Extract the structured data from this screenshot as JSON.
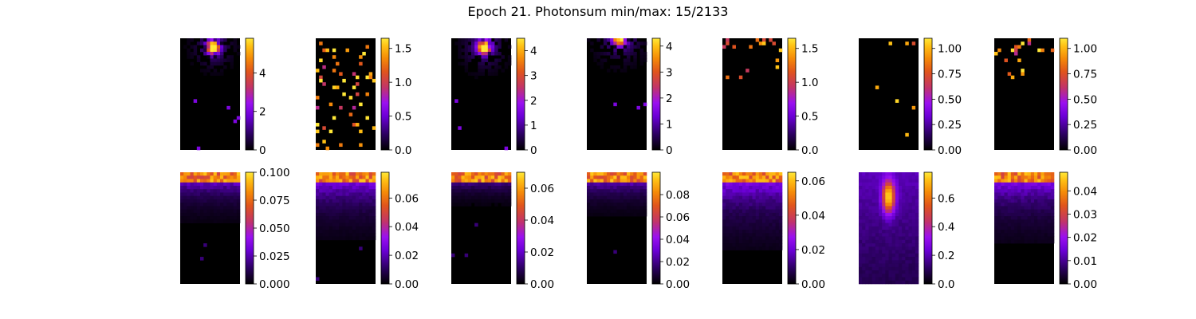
{
  "title": "Epoch 21. Photonsum min/max: 15/2133",
  "colormap": [
    "#000000",
    "#2b0060",
    "#6b00d6",
    "#9a10f0",
    "#c23468",
    "#e0541c",
    "#f58a08",
    "#ffc014",
    "#ffe838"
  ],
  "chart_data": {
    "type": "heatmap",
    "rows": 2,
    "columns": 7,
    "grid_size": [
      18,
      33
    ],
    "panels": [
      {
        "row": 0,
        "col": 0,
        "vmin": 0,
        "vmax": 5.8,
        "ticks": [
          "0",
          "2",
          "4"
        ],
        "tick_values": [
          0,
          2,
          4
        ],
        "pattern": "hotspot",
        "center": [
          0.55,
          0.08
        ],
        "spread": 0.18,
        "density": 0.45,
        "seed": 11
      },
      {
        "row": 0,
        "col": 1,
        "vmin": 0,
        "vmax": 1.65,
        "ticks": [
          "0.0",
          "0.5",
          "1.0",
          "1.5"
        ],
        "tick_values": [
          0,
          0.5,
          1.0,
          1.5
        ],
        "pattern": "sparse",
        "density": 0.07,
        "seed": 23
      },
      {
        "row": 0,
        "col": 2,
        "vmin": 0,
        "vmax": 4.5,
        "ticks": [
          "0",
          "1",
          "2",
          "3",
          "4"
        ],
        "tick_values": [
          0,
          1,
          2,
          3,
          4
        ],
        "pattern": "hotspot",
        "center": [
          0.55,
          0.08
        ],
        "spread": 0.2,
        "density": 0.5,
        "seed": 37
      },
      {
        "row": 0,
        "col": 3,
        "vmin": 0,
        "vmax": 4.3,
        "ticks": [
          "0",
          "1",
          "2",
          "3",
          "4"
        ],
        "tick_values": [
          0,
          1,
          2,
          3,
          4
        ],
        "pattern": "hotspot",
        "center": [
          0.55,
          0.0
        ],
        "spread": 0.22,
        "density": 0.45,
        "seed": 41
      },
      {
        "row": 0,
        "col": 4,
        "vmin": 0,
        "vmax": 1.65,
        "ticks": [
          "0.0",
          "0.5",
          "1.0",
          "1.5"
        ],
        "tick_values": [
          0,
          0.5,
          1.0,
          1.5
        ],
        "pattern": "sparse-top",
        "density": 0.05,
        "seed": 53
      },
      {
        "row": 0,
        "col": 5,
        "vmin": 0,
        "vmax": 1.1,
        "ticks": [
          "0.00",
          "0.25",
          "0.50",
          "0.75",
          "1.00"
        ],
        "tick_values": [
          0,
          0.25,
          0.5,
          0.75,
          1.0
        ],
        "pattern": "sparse",
        "density": 0.012,
        "seed": 67
      },
      {
        "row": 0,
        "col": 6,
        "vmin": 0,
        "vmax": 1.1,
        "ticks": [
          "0.00",
          "0.25",
          "0.50",
          "0.75",
          "1.00"
        ],
        "tick_values": [
          0,
          0.25,
          0.5,
          0.75,
          1.0
        ],
        "pattern": "sparse-top",
        "density": 0.06,
        "seed": 71
      },
      {
        "row": 1,
        "col": 0,
        "vmin": 0,
        "vmax": 0.1,
        "ticks": [
          "0.000",
          "0.025",
          "0.050",
          "0.075",
          "0.100"
        ],
        "tick_values": [
          0,
          0.025,
          0.05,
          0.075,
          0.1
        ],
        "pattern": "gradient",
        "depth": 0.35,
        "seed": 83
      },
      {
        "row": 1,
        "col": 1,
        "vmin": 0,
        "vmax": 0.078,
        "ticks": [
          "0.00",
          "0.02",
          "0.04",
          "0.06"
        ],
        "tick_values": [
          0,
          0.02,
          0.04,
          0.06
        ],
        "pattern": "gradient",
        "depth": 0.5,
        "seed": 89
      },
      {
        "row": 1,
        "col": 2,
        "vmin": 0,
        "vmax": 0.07,
        "ticks": [
          "0.00",
          "0.02",
          "0.04",
          "0.06"
        ],
        "tick_values": [
          0,
          0.02,
          0.04,
          0.06
        ],
        "pattern": "gradient",
        "depth": 0.22,
        "seed": 97
      },
      {
        "row": 1,
        "col": 3,
        "vmin": 0,
        "vmax": 0.1,
        "ticks": [
          "0.00",
          "0.02",
          "0.04",
          "0.06",
          "0.08"
        ],
        "tick_values": [
          0,
          0.02,
          0.04,
          0.06,
          0.08
        ],
        "pattern": "gradient",
        "depth": 0.3,
        "seed": 101
      },
      {
        "row": 1,
        "col": 4,
        "vmin": 0,
        "vmax": 0.065,
        "ticks": [
          "0.00",
          "0.02",
          "0.04",
          "0.06"
        ],
        "tick_values": [
          0,
          0.02,
          0.04,
          0.06
        ],
        "pattern": "gradient",
        "depth": 0.6,
        "seed": 103
      },
      {
        "row": 1,
        "col": 5,
        "vmin": 0,
        "vmax": 0.78,
        "ticks": [
          "0.0",
          "0.2",
          "0.4",
          "0.6"
        ],
        "tick_values": [
          0,
          0.2,
          0.4,
          0.6
        ],
        "pattern": "blob",
        "center": [
          0.5,
          0.22
        ],
        "spread": 0.3,
        "seed": 107
      },
      {
        "row": 1,
        "col": 6,
        "vmin": 0,
        "vmax": 0.048,
        "ticks": [
          "0.00",
          "0.01",
          "0.02",
          "0.03",
          "0.04"
        ],
        "tick_values": [
          0,
          0.01,
          0.02,
          0.03,
          0.04
        ],
        "pattern": "gradient",
        "depth": 0.55,
        "seed": 109
      }
    ]
  }
}
